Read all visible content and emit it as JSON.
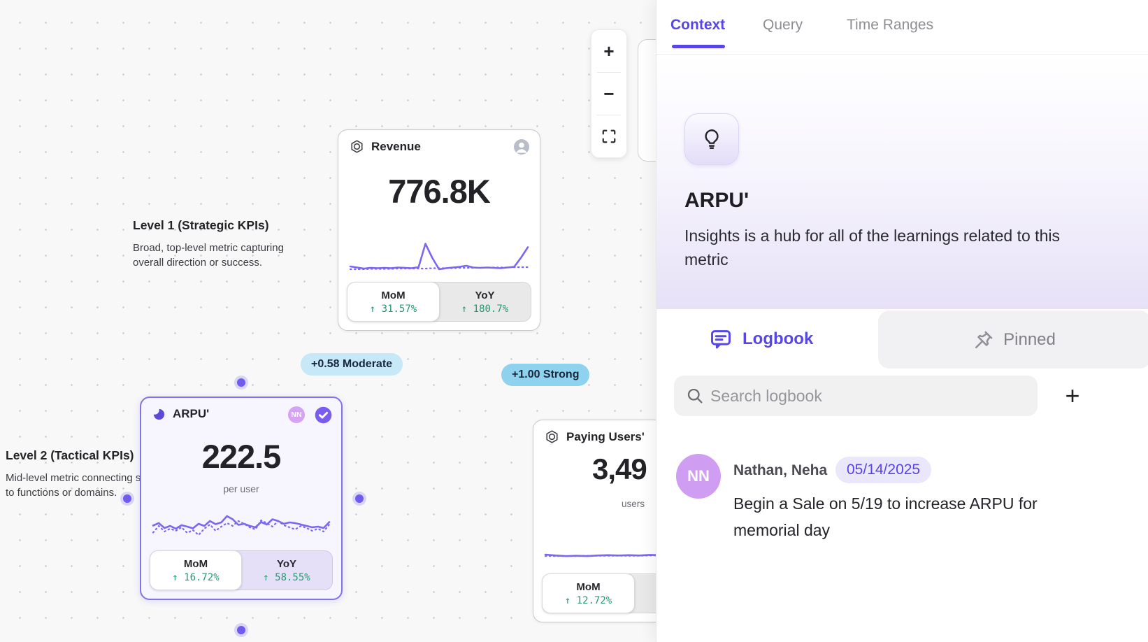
{
  "canvas": {
    "toolbar": {
      "zoom_in": "+",
      "zoom_out": "−"
    },
    "annotations": {
      "level1": {
        "title": "Level 1 (Strategic KPIs)",
        "description": "Broad, top-level metric capturing overall direction or success."
      },
      "level2": {
        "title": "Level 2 (Tactical KPIs)",
        "description": "Mid-level metric connecting strategy to functions or domains."
      }
    },
    "cards": {
      "revenue": {
        "title": "Revenue",
        "value": "776.8K",
        "stats": {
          "mom_label": "MoM",
          "mom_value": "↑ 31.57%",
          "yoy_label": "YoY",
          "yoy_value": "↑ 180.7%"
        },
        "spark_solid": [
          20,
          17,
          14,
          16,
          15,
          16,
          15,
          17,
          16,
          15,
          18,
          85,
          45,
          12,
          15,
          17,
          19,
          22,
          17,
          16,
          17,
          16,
          15,
          17,
          19,
          45,
          75
        ],
        "spark_dotted": [
          12,
          12,
          12,
          13,
          13,
          13,
          13,
          14,
          14,
          14,
          14,
          14,
          15,
          15,
          15,
          15,
          16,
          16,
          16,
          16,
          17,
          17,
          17,
          17,
          18,
          18,
          18
        ]
      },
      "arpu": {
        "title": "ARPU'",
        "value": "222.5",
        "unit": "per user",
        "avatar_initials": "NN",
        "stats": {
          "mom_label": "MoM",
          "mom_value": "↑ 16.72%",
          "yoy_label": "YoY",
          "yoy_value": "↑ 58.55%"
        },
        "spark_solid": [
          45,
          52,
          38,
          44,
          36,
          46,
          42,
          37,
          50,
          44,
          58,
          49,
          54,
          72,
          63,
          47,
          50,
          44,
          40,
          55,
          48,
          63,
          58,
          50,
          54,
          52,
          48,
          44,
          40,
          42,
          38,
          55
        ],
        "spark_dotted": [
          25,
          44,
          28,
          36,
          30,
          40,
          24,
          32,
          18,
          36,
          48,
          30,
          42,
          52,
          44,
          58,
          50,
          40,
          34,
          60,
          52,
          42,
          58,
          46,
          40,
          34,
          44,
          38,
          30,
          36,
          28,
          48
        ]
      },
      "paying_users": {
        "title": "Paying Users'",
        "value": "3,49",
        "unit": "users",
        "stats": {
          "mom_label": "MoM",
          "mom_value": "↑ 12.72%"
        },
        "spark_solid": [
          16,
          13,
          11,
          12,
          11,
          13,
          14,
          13,
          14,
          13,
          15,
          14,
          18,
          16,
          15,
          78,
          38,
          14
        ],
        "spark_dotted": [
          11,
          11,
          11,
          11,
          12,
          12,
          12,
          12,
          12,
          12,
          13,
          13,
          13,
          13,
          13,
          13,
          13,
          13
        ]
      }
    },
    "edges": [
      {
        "label": "+0.58 Moderate",
        "strength": "Moderate",
        "value": "+0.58"
      },
      {
        "label": "+1.00 Strong",
        "strength": "Strong",
        "value": "+1.00"
      }
    ]
  },
  "panel": {
    "tabs": [
      {
        "label": "Context"
      },
      {
        "label": "Query"
      },
      {
        "label": "Time Ranges"
      }
    ],
    "hero": {
      "title": "ARPU'",
      "description": "Insights is a hub for all of the learnings related to this metric"
    },
    "subtabs": {
      "logbook": "Logbook",
      "pinned": "Pinned"
    },
    "search": {
      "placeholder": "Search logbook",
      "add_label": "+"
    },
    "logbook_entries": [
      {
        "initials": "NN",
        "author": "Nathan, Neha",
        "date": "05/14/2025",
        "message": "Begin a Sale on 5/19 to increase ARPU for memorial day"
      }
    ]
  },
  "colors": {
    "accent_purple": "#5646e5",
    "sparkline_purple": "#7b68f0",
    "arpu_border": "#8173ea",
    "edge_blue": "#1b95cf",
    "pill_moderate_bg": "#c7e8f6",
    "pill_strong_bg": "#8fd2ee",
    "positive_green": "#27986f",
    "avatar_purple": "#cf9ef2",
    "canvas_bg": "#f8f8f8"
  }
}
